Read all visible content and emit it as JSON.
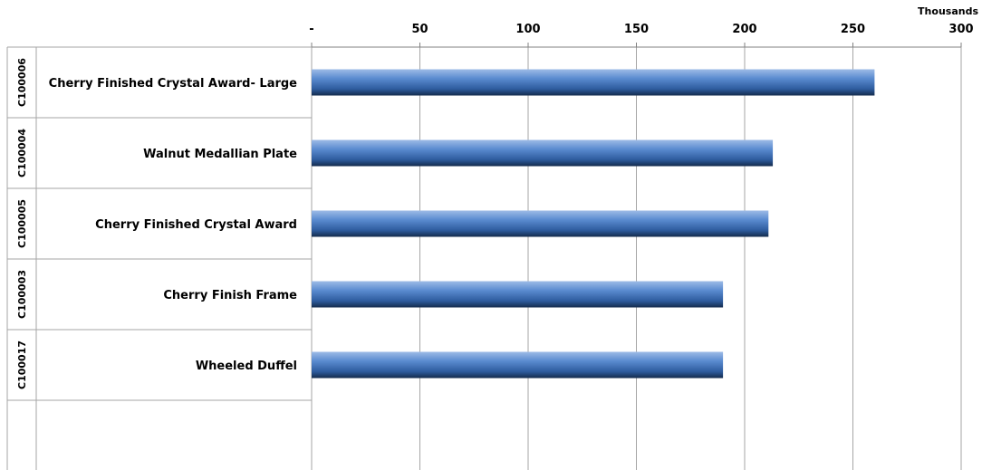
{
  "chart_data": {
    "type": "bar",
    "orientation": "horizontal",
    "categories": [
      "Cherry Finished Crystal Award- Large",
      "Walnut Medallian Plate",
      "Cherry Finished Crystal Award",
      "Cherry Finish Frame",
      "Wheeled Duffel"
    ],
    "category_codes": [
      "C100006",
      "C100004",
      "C100005",
      "C100003",
      "C100017"
    ],
    "series": [
      {
        "values": [
          260,
          213,
          211,
          190,
          190
        ]
      }
    ],
    "value_axis": {
      "tick_labels": [
        "-",
        "50",
        "100",
        "150",
        "200",
        "250",
        "300"
      ],
      "ticks": [
        0,
        50,
        100,
        150,
        200,
        250,
        300
      ],
      "units_label": "Thousands",
      "range": [
        0,
        300
      ],
      "position": "top"
    },
    "title": "",
    "bar_color": "#4F81BD",
    "grid": true
  }
}
